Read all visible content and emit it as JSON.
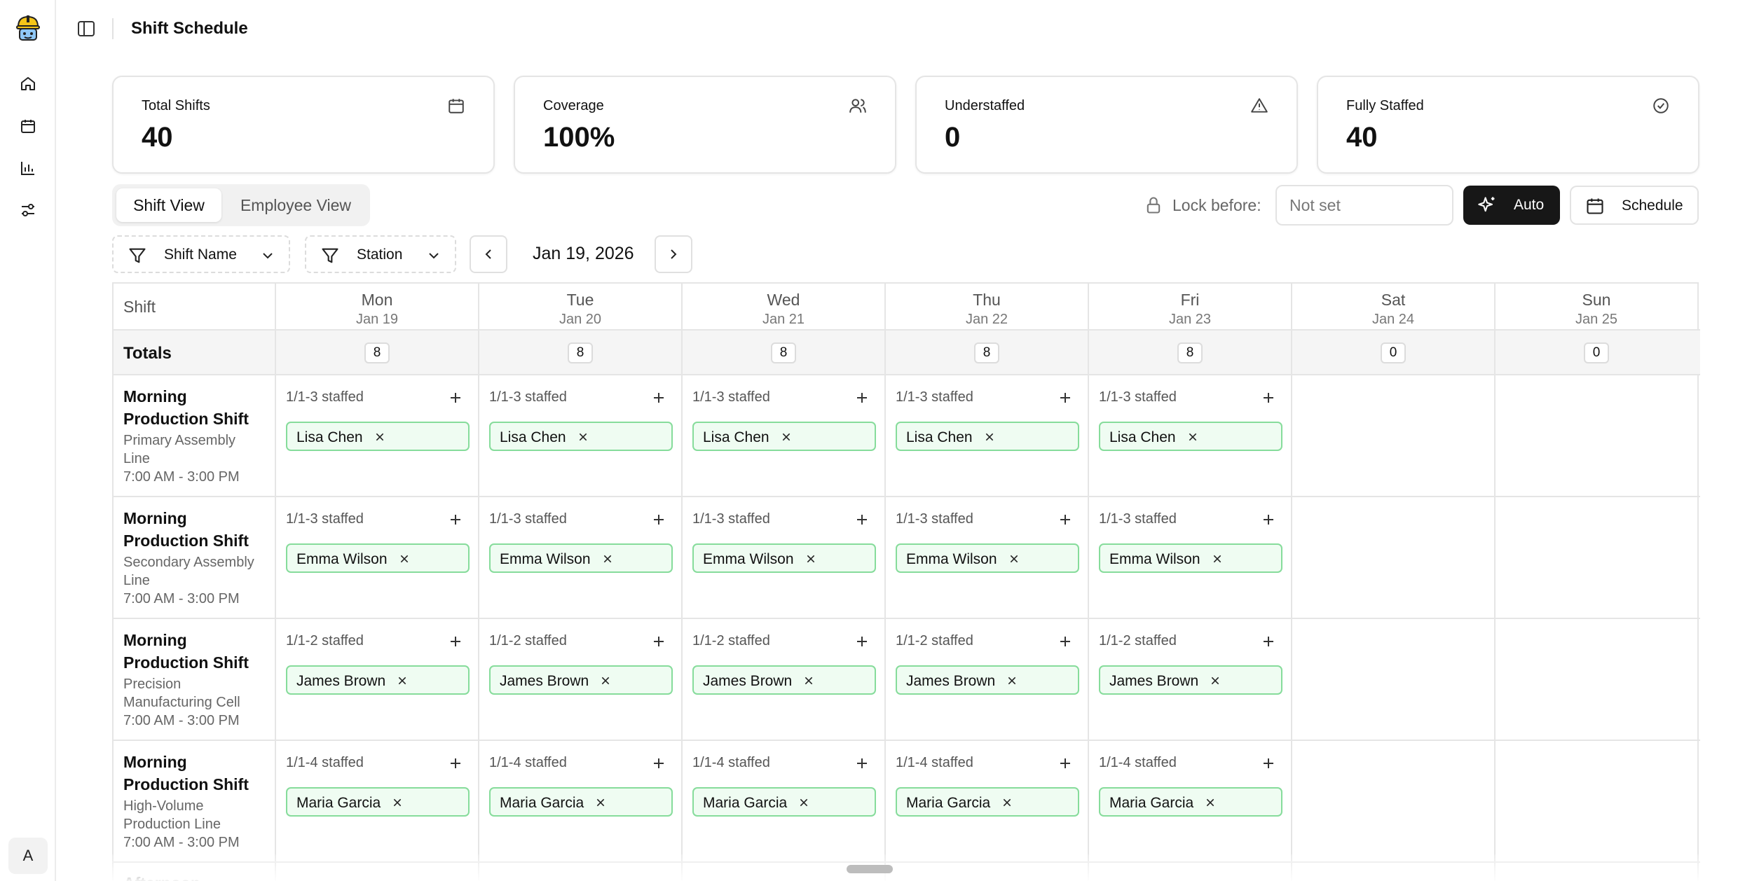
{
  "app": {
    "title": "Shift Schedule",
    "avatar_initial": "A"
  },
  "sidebar": {
    "items": [
      {
        "icon": "home-icon"
      },
      {
        "icon": "calendar-icon"
      },
      {
        "icon": "bar-chart-icon"
      },
      {
        "icon": "sliders-icon"
      }
    ]
  },
  "stats": [
    {
      "label": "Total Shifts",
      "value": "40",
      "icon": "calendar-icon"
    },
    {
      "label": "Coverage",
      "value": "100%",
      "icon": "users-icon"
    },
    {
      "label": "Understaffed",
      "value": "0",
      "icon": "warning-icon"
    },
    {
      "label": "Fully Staffed",
      "value": "40",
      "icon": "check-circle-icon"
    }
  ],
  "tabs": [
    {
      "label": "Shift View",
      "active": true
    },
    {
      "label": "Employee View",
      "active": false
    }
  ],
  "controls": {
    "lock_label": "Lock before:",
    "lock_placeholder": "Not set",
    "auto_label": "Auto",
    "schedule_label": "Schedule"
  },
  "filters": {
    "shift_name": "Shift Name",
    "station": "Station",
    "date": "Jan 19, 2026"
  },
  "table": {
    "shift_header": "Shift",
    "totals_label": "Totals",
    "days": [
      {
        "name": "Mon",
        "date": "Jan 19",
        "total": "8"
      },
      {
        "name": "Tue",
        "date": "Jan 20",
        "total": "8"
      },
      {
        "name": "Wed",
        "date": "Jan 21",
        "total": "8"
      },
      {
        "name": "Thu",
        "date": "Jan 22",
        "total": "8"
      },
      {
        "name": "Fri",
        "date": "Jan 23",
        "total": "8"
      },
      {
        "name": "Sat",
        "date": "Jan 24",
        "total": "0"
      },
      {
        "name": "Sun",
        "date": "Jan 25",
        "total": "0"
      }
    ],
    "rows": [
      {
        "name_line1": "Morning",
        "name_line2": "Production Shift",
        "station_line1": "Primary Assembly",
        "station_line2": "Line",
        "time": "7:00 AM - 3:00 PM",
        "staffed": "1/1-3 staffed",
        "employee": "Lisa Chen"
      },
      {
        "name_line1": "Morning",
        "name_line2": "Production Shift",
        "station_line1": "Secondary Assembly",
        "station_line2": "Line",
        "time": "7:00 AM - 3:00 PM",
        "staffed": "1/1-3 staffed",
        "employee": "Emma Wilson"
      },
      {
        "name_line1": "Morning",
        "name_line2": "Production Shift",
        "station_line1": "Precision",
        "station_line2": "Manufacturing Cell",
        "time": "7:00 AM - 3:00 PM",
        "staffed": "1/1-2 staffed",
        "employee": "James Brown"
      },
      {
        "name_line1": "Morning",
        "name_line2": "Production Shift",
        "station_line1": "High-Volume",
        "station_line2": "Production Line",
        "time": "7:00 AM - 3:00 PM",
        "staffed": "1/1-4 staffed",
        "employee": "Maria Garcia"
      }
    ],
    "cutoff_row_name": "Afternoon"
  }
}
